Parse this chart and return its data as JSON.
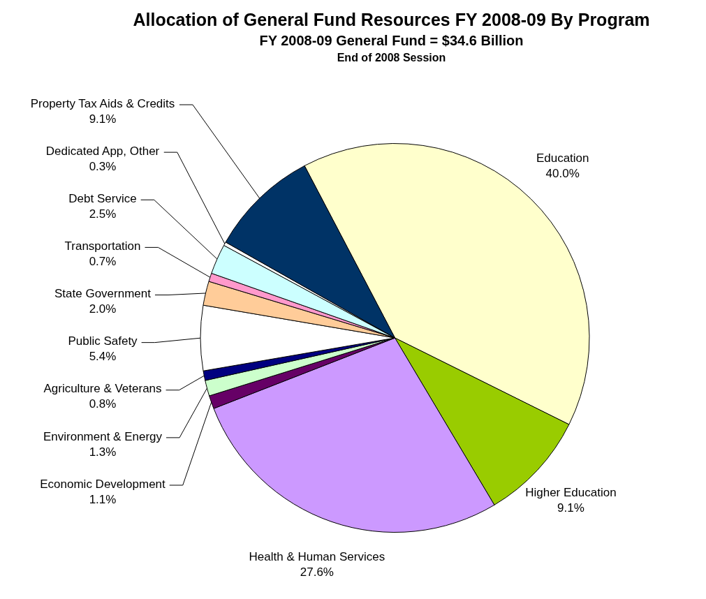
{
  "chart_data": {
    "type": "pie",
    "title": "Allocation of General Fund Resources FY 2008-09 By Program",
    "subtitle": "FY 2008-09 General Fund = $34.6 Billion",
    "annotations": [
      "End of 2008 Session"
    ],
    "categories": [
      "Education",
      "Higher Education",
      "Health & Human Services",
      "Economic Development",
      "Environment & Energy",
      "Agriculture & Veterans",
      "Public Safety",
      "State Government",
      "Transportation",
      "Debt Service",
      "Dedicated App, Other",
      "Property Tax Aids & Credits"
    ],
    "values": [
      40.0,
      9.1,
      27.6,
      1.1,
      1.3,
      0.8,
      5.4,
      2.0,
      0.7,
      2.5,
      0.3,
      9.1
    ],
    "value_labels": [
      "40.0%",
      "9.1%",
      "27.6%",
      "1.1%",
      "1.3%",
      "0.8%",
      "5.4%",
      "2.0%",
      "0.7%",
      "2.5%",
      "0.3%",
      "9.1%"
    ],
    "colors": [
      "#ffffcc",
      "#99cc00",
      "#cc99ff",
      "#660066",
      "#ccffcc",
      "#000080",
      "#ffffff",
      "#ffcc99",
      "#ff99cc",
      "#ccffff",
      "#ffffff",
      "#003366"
    ]
  }
}
